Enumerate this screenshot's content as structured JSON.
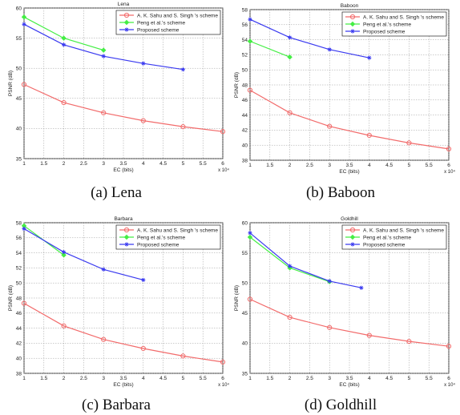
{
  "figure": {
    "panels": [
      {
        "caption": "(a) Lena"
      },
      {
        "caption": "(b) Baboon"
      },
      {
        "caption": "(c) Barbara"
      },
      {
        "caption": "(d) Goldhill"
      }
    ]
  },
  "chart_data": [
    {
      "type": "line",
      "title": "Lena",
      "xlabel": "EC (bits)",
      "ylabel": "PSNR (dB)",
      "x_scale_label": "x 10⁴",
      "xlim": [
        1,
        6
      ],
      "ylim": [
        35,
        60
      ],
      "xticks": [
        "1",
        "1.5",
        "2",
        "2.5",
        "3",
        "3.5",
        "4",
        "4.5",
        "5",
        "5.5",
        "6"
      ],
      "yticks": [
        "35",
        "40",
        "45",
        "50",
        "55",
        "60"
      ],
      "grid": true,
      "legend_position": "top-right",
      "series": [
        {
          "name": "A. K. Sahu and S. Singh 's scheme",
          "color": "#f26b6b",
          "marker": "circle",
          "x": [
            1,
            2,
            3,
            4,
            5,
            6
          ],
          "y": [
            47.3,
            44.3,
            42.6,
            41.3,
            40.3,
            39.5
          ]
        },
        {
          "name": "Peng et al.'s scheme",
          "color": "#44ee44",
          "marker": "diamond",
          "x": [
            1,
            2,
            3
          ],
          "y": [
            58.5,
            55,
            53
          ]
        },
        {
          "name": "Proposed scheme",
          "color": "#3a3af0",
          "marker": "star",
          "x": [
            1,
            2,
            3,
            4,
            5
          ],
          "y": [
            57.3,
            53.9,
            52,
            50.8,
            49.8
          ]
        }
      ]
    },
    {
      "type": "line",
      "title": "Baboon",
      "xlabel": "EC (bits)",
      "ylabel": "PSNR (dB)",
      "x_scale_label": "x 10⁴",
      "xlim": [
        1,
        6
      ],
      "ylim": [
        38,
        58
      ],
      "xticks": [
        "1",
        "1.5",
        "2",
        "2.5",
        "3",
        "3.5",
        "4",
        "4.5",
        "5",
        "5.5",
        "6"
      ],
      "yticks": [
        "38",
        "40",
        "42",
        "44",
        "46",
        "48",
        "50",
        "52",
        "54",
        "56",
        "58"
      ],
      "grid": true,
      "legend_position": "top-right",
      "series": [
        {
          "name": "A. K. Sahu and S. Singh 's scheme",
          "color": "#f26b6b",
          "marker": "circle",
          "x": [
            1,
            2,
            3,
            4,
            5,
            6
          ],
          "y": [
            47.3,
            44.3,
            42.5,
            41.3,
            40.3,
            39.5
          ]
        },
        {
          "name": "Peng et al.'s scheme",
          "color": "#44ee44",
          "marker": "diamond",
          "x": [
            1,
            2
          ],
          "y": [
            53.8,
            51.7
          ]
        },
        {
          "name": "Proposed scheme",
          "color": "#3a3af0",
          "marker": "star",
          "x": [
            1,
            2,
            3,
            4
          ],
          "y": [
            56.7,
            54.3,
            52.7,
            51.6
          ]
        }
      ]
    },
    {
      "type": "line",
      "title": "Barbara",
      "xlabel": "EC (bits)",
      "ylabel": "PSNR (dB)",
      "x_scale_label": "x 10⁴",
      "xlim": [
        1,
        6
      ],
      "ylim": [
        38,
        58
      ],
      "xticks": [
        "1",
        "1.5",
        "2",
        "2.5",
        "3",
        "3.5",
        "4",
        "4.5",
        "5",
        "5.5",
        "6"
      ],
      "yticks": [
        "38",
        "40",
        "42",
        "44",
        "46",
        "48",
        "50",
        "52",
        "54",
        "56",
        "58"
      ],
      "grid": true,
      "legend_position": "top-right",
      "series": [
        {
          "name": "A. K. Sahu and S. Singh 's scheme",
          "color": "#f26b6b",
          "marker": "circle",
          "x": [
            1,
            2,
            3,
            4,
            5,
            6
          ],
          "y": [
            47.3,
            44.3,
            42.5,
            41.3,
            40.3,
            39.5
          ]
        },
        {
          "name": "Peng et al.'s scheme",
          "color": "#44ee44",
          "marker": "diamond",
          "x": [
            1,
            2
          ],
          "y": [
            57.6,
            53.7
          ]
        },
        {
          "name": "Proposed scheme",
          "color": "#3a3af0",
          "marker": "star",
          "x": [
            1,
            2,
            3,
            4
          ],
          "y": [
            57.2,
            54.1,
            51.8,
            50.4
          ]
        }
      ]
    },
    {
      "type": "line",
      "title": "Goldhill",
      "xlabel": "EC (bits)",
      "ylabel": "PSNR (dB)",
      "x_scale_label": "x 10⁴",
      "xlim": [
        1,
        6
      ],
      "ylim": [
        35,
        60
      ],
      "xticks": [
        "1",
        "1.5",
        "2",
        "2.5",
        "3",
        "3.5",
        "4",
        "4.5",
        "5",
        "5.5",
        "6"
      ],
      "yticks": [
        "35",
        "40",
        "45",
        "50",
        "55",
        "60"
      ],
      "grid": true,
      "legend_position": "top-right",
      "series": [
        {
          "name": "A. K. Sahu and S. Singh 's scheme",
          "color": "#f26b6b",
          "marker": "circle",
          "x": [
            1,
            2,
            3,
            4,
            5,
            6
          ],
          "y": [
            47.3,
            44.3,
            42.6,
            41.3,
            40.3,
            39.5
          ]
        },
        {
          "name": "Peng et al.'s scheme",
          "color": "#44ee44",
          "marker": "diamond",
          "x": [
            1,
            2,
            3
          ],
          "y": [
            57.6,
            52.5,
            50.2
          ]
        },
        {
          "name": "Proposed scheme",
          "color": "#3a3af0",
          "marker": "star",
          "x": [
            1,
            2,
            3,
            3.8
          ],
          "y": [
            58.3,
            52.8,
            50.3,
            49.2
          ]
        }
      ]
    }
  ]
}
